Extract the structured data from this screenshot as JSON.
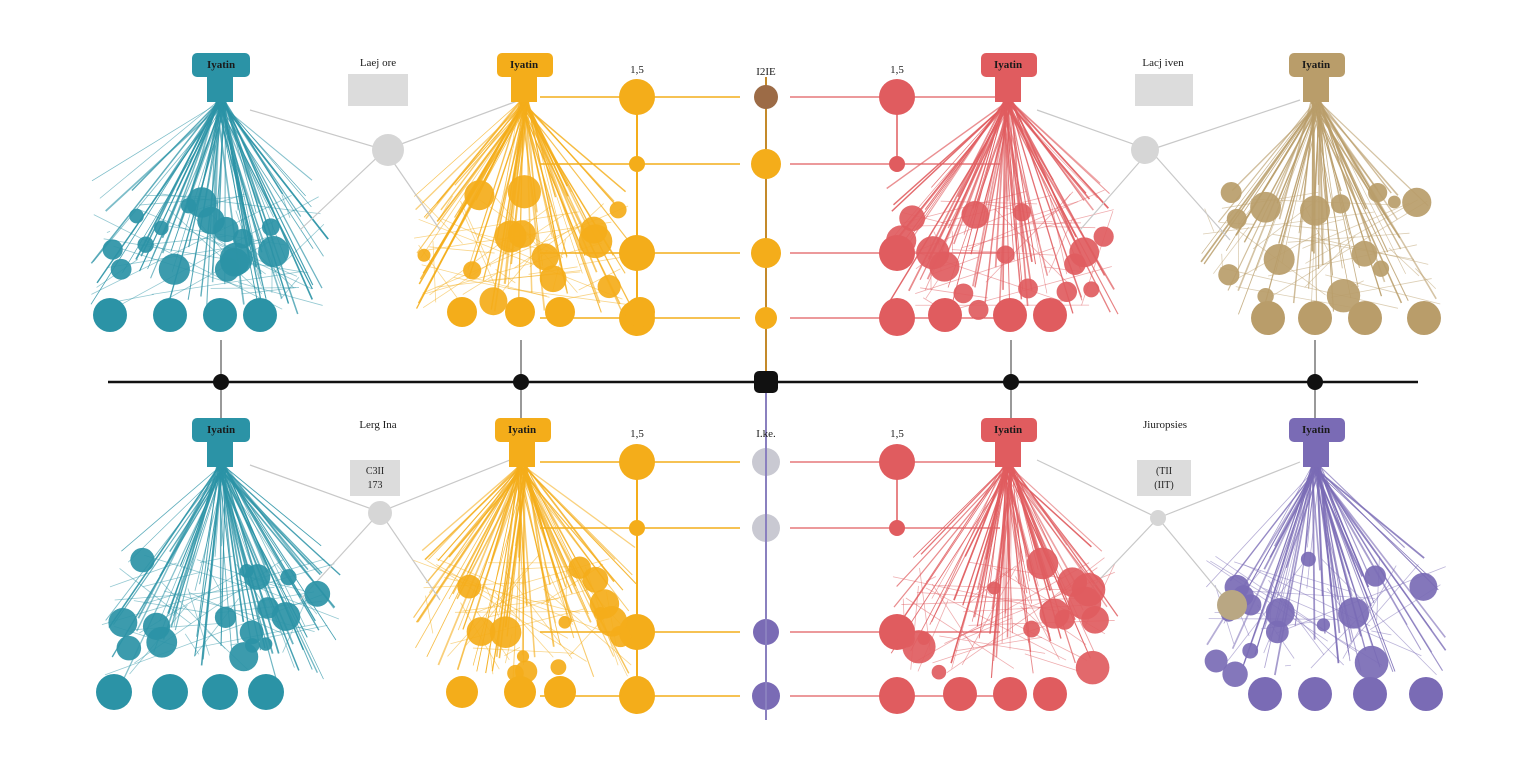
{
  "colors": {
    "teal": "#2b93a6",
    "orange": "#f4ad1a",
    "red": "#e05c5f",
    "tan": "#b99d6a",
    "purple": "#7a6bb5",
    "grey": "#c9c9d2",
    "brown": "#9c6b46",
    "axis": "#111111",
    "box": "#dcdcdc"
  },
  "top_row": {
    "hubs": [
      {
        "label": "Iyatin",
        "color": "teal"
      },
      {
        "label": "Iyatin",
        "color": "orange"
      },
      {
        "label": "Iyatin",
        "color": "red"
      },
      {
        "label": "Iyatin",
        "color": "tan"
      }
    ],
    "legends": [
      {
        "label": "Laej ore",
        "lines": []
      },
      {
        "label": "Lacj iven",
        "lines": []
      }
    ],
    "ladder_left_label": "1,5",
    "ladder_mid_label": "I2IE",
    "ladder_right_label": "1,5"
  },
  "bottom_row": {
    "hubs": [
      {
        "label": "Iyatin",
        "color": "teal"
      },
      {
        "label": "Iyatin",
        "color": "orange"
      },
      {
        "label": "Iyatin",
        "color": "red"
      },
      {
        "label": "Iyatin",
        "color": "purple"
      }
    ],
    "legends": [
      {
        "label": "Lerg Ina",
        "lines": [
          "C3II",
          "173"
        ]
      },
      {
        "label": "Jiuropsies",
        "lines": [
          "(TII",
          "(IIT)"
        ]
      }
    ],
    "ladder_left_label": "1,5",
    "ladder_mid_label": "I.ke.",
    "ladder_right_label": "1,5"
  }
}
